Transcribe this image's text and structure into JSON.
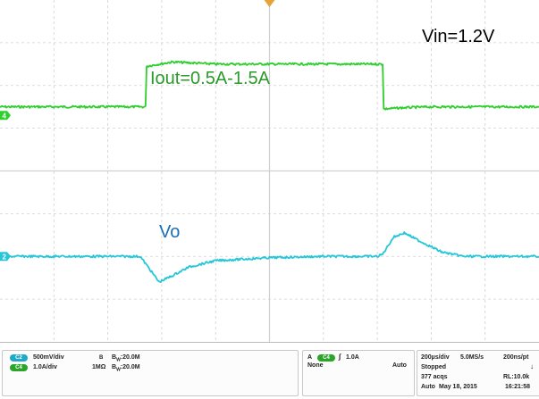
{
  "annotations": {
    "vin": "Vin=1.2V",
    "iout": "Iout=0.5A-1.5A",
    "vo": "Vo"
  },
  "colors": {
    "ch4_trace": "#2ccf2c",
    "ch2_trace": "#26c6d8",
    "ch4_label": "#2a9a2a",
    "ch2_label": "#1a6fb8",
    "trigger_marker": "#e6a33a",
    "grid": "#d0d0d0"
  },
  "chart_data": {
    "type": "line",
    "x_divisions": 10,
    "y_divisions": 8,
    "grid": true,
    "series": [
      {
        "channel": "C4",
        "x": [
          0,
          2.7,
          2.72,
          3.2,
          4.0,
          5.0,
          6.0,
          7.1,
          7.12,
          7.5,
          8.0,
          9.0,
          10.0
        ],
        "y": [
          1.5,
          1.5,
          2.45,
          2.55,
          2.5,
          2.5,
          2.5,
          2.5,
          1.45,
          1.48,
          1.5,
          1.5,
          1.5
        ]
      },
      {
        "channel": "C2",
        "x": [
          0,
          2.6,
          2.75,
          2.95,
          3.2,
          3.5,
          4.0,
          5.0,
          6.0,
          7.0,
          7.1,
          7.3,
          7.5,
          7.8,
          8.2,
          8.6,
          9.0,
          10.0
        ],
        "y": [
          -2.0,
          -2.0,
          -2.25,
          -2.6,
          -2.45,
          -2.25,
          -2.1,
          -2.03,
          -2.0,
          -2.0,
          -1.95,
          -1.55,
          -1.45,
          -1.65,
          -1.9,
          -2.0,
          -2.0,
          -2.0
        ]
      }
    ],
    "channel_markers": [
      {
        "label": "4",
        "y": 1.3
      },
      {
        "label": "2",
        "y": -2.0
      }
    ]
  },
  "panel": {
    "ch2": {
      "badge": "C2",
      "scale": "500mV/div",
      "coupling": "B",
      "bw": "20.0M"
    },
    "ch4": {
      "badge": "C4",
      "scale": "1.0A/div",
      "impedance": "1MΩ",
      "bw": "20.0M"
    },
    "trigger": {
      "source_letter": "A",
      "badge": "C4",
      "level": "1.0A",
      "mode_left": "None",
      "mode_right": "Auto"
    },
    "acq": {
      "timebase": "200µs/div",
      "rate": "5.0MS/s",
      "per_point": "200ns/pt",
      "state": "Stopped",
      "acqs": "377 acqs",
      "record_length": "RL:10.0k",
      "mode": "Auto",
      "date": "May 18, 2015",
      "time": "16:21:58"
    }
  }
}
